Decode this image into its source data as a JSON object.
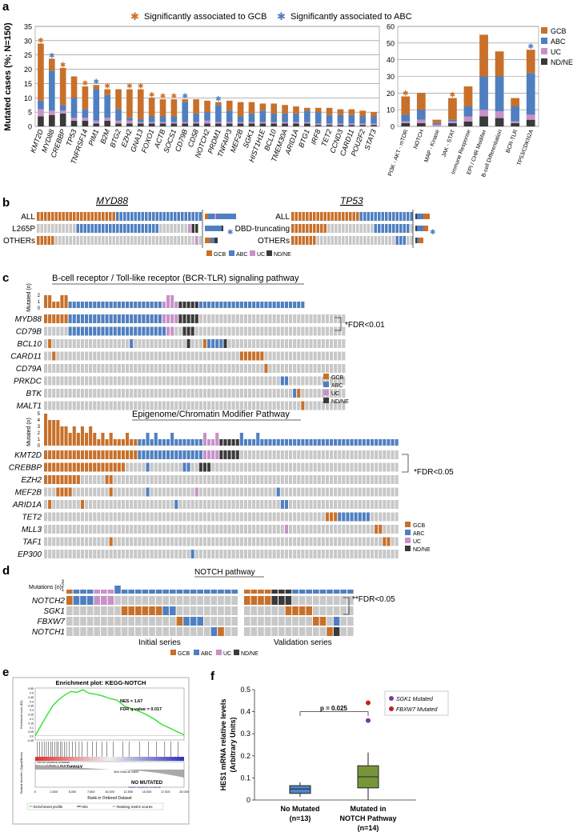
{
  "colors": {
    "gcb": "#c8702a",
    "abc": "#4f7fc0",
    "uc": "#c891c8",
    "ndne": "#3a3a3a",
    "wt": "#c8c8c8",
    "green": "#34e02c",
    "red": "#c02020",
    "purple": "#7a3a9a",
    "boxblue": "#4f86c6",
    "boxgreen": "#77963a"
  },
  "panel_labels": {
    "a": "a",
    "b": "b",
    "c": "c",
    "d": "d",
    "e": "e",
    "f": "f"
  },
  "legend_stars": {
    "gcb": "Significantly associated to GCB",
    "abc": "Significantly associated to ABC"
  },
  "subtype_legend": {
    "gcb": "GCB",
    "abc": "ABC",
    "uc": "UC",
    "ndne": "ND/NE"
  },
  "chart_data": [
    {
      "id": "genes",
      "type": "bar",
      "stacked": true,
      "ylabel": "Mutated cases (%; N=150)",
      "ylim": [
        0,
        35
      ],
      "yticks": [
        0,
        5,
        10,
        15,
        20,
        25,
        30,
        35
      ],
      "categories": [
        "KMT2D",
        "MYD88",
        "CREBBP",
        "TP53",
        "TNFRSF14",
        "PIM1",
        "B2M",
        "BTG2",
        "EZH2",
        "GNA13",
        "FOXO1",
        "ACTB",
        "SOCS1",
        "CD79B",
        "CD58",
        "NOTCH2",
        "PRDM1",
        "TNFAIP3",
        "MEF2B",
        "SGK1",
        "HIST1H1E",
        "BCL10",
        "TMEM30A",
        "ARID1A",
        "BTG1",
        "IRF8",
        "TET2",
        "CCND3",
        "CARD11",
        "POU2F2",
        "STAT3"
      ],
      "series": [
        {
          "name": "ND/NE",
          "values": [
            3.5,
            4,
            4.5,
            2,
            2,
            1,
            2,
            1,
            1,
            1,
            1,
            1,
            1,
            1,
            1,
            1,
            1,
            1,
            1,
            1,
            1,
            1,
            1,
            1,
            1,
            0.5,
            0.5,
            0.5,
            0.5,
            0.5,
            0.5
          ]
        },
        {
          "name": "UC",
          "values": [
            2.5,
            1.5,
            1,
            1,
            1,
            1,
            1,
            1,
            1,
            0.5,
            0.5,
            0.5,
            0.5,
            0.5,
            0.5,
            1,
            0.5,
            0.5,
            0.5,
            0.5,
            0.5,
            0.5,
            0.5,
            0.5,
            0.5,
            0.5,
            0.5,
            0.5,
            0.5,
            0.5,
            0.5
          ]
        },
        {
          "name": "ABC",
          "values": [
            3,
            14,
            2,
            7,
            3,
            11,
            8,
            4,
            1,
            1,
            2,
            2,
            2,
            7,
            3,
            3,
            6,
            4,
            2,
            3,
            4,
            3,
            3,
            3,
            4,
            4,
            3,
            3,
            3,
            2.5,
            2.5
          ]
        },
        {
          "name": "GCB",
          "values": [
            20,
            4.2,
            13,
            7.5,
            8,
            1.5,
            2,
            7,
            10,
            10.5,
            6.5,
            6,
            6,
            1,
            5,
            4,
            1,
            3.5,
            5,
            4,
            2.5,
            3.5,
            3,
            2.5,
            1,
            1.5,
            2.5,
            2,
            2,
            2,
            1.5
          ]
        }
      ],
      "stars": [
        "gcb",
        "abc",
        "gcb",
        "",
        "gcb",
        "abc",
        "gcb",
        "",
        "gcb",
        "gcb",
        "gcb",
        "gcb",
        "gcb",
        "abc",
        "",
        "",
        "abc",
        "",
        "",
        "",
        "",
        "",
        "",
        "",
        "",
        "",
        "",
        "",
        "",
        "",
        ""
      ]
    },
    {
      "id": "pathways",
      "type": "bar",
      "stacked": true,
      "ylim": [
        0,
        60
      ],
      "yticks": [
        0,
        10,
        20,
        30,
        40,
        50,
        60
      ],
      "categories": [
        "PI3K - AKT - mTOR",
        "NOTCH",
        "MAP - Kinase",
        "JAK - STAT",
        "Immune Response",
        "EPI / CHR Modifier",
        "B-cell Differentiation",
        "BCR-TLR",
        "TP53/CDKN2A"
      ],
      "series": [
        {
          "name": "ND/NE",
          "values": [
            2,
            2,
            0,
            2,
            3,
            6,
            5,
            2,
            4
          ]
        },
        {
          "name": "UC",
          "values": [
            1,
            2,
            1,
            1,
            3,
            4,
            4,
            1,
            3
          ]
        },
        {
          "name": "ABC",
          "values": [
            4,
            6,
            1,
            1,
            6,
            20,
            21,
            9,
            25
          ]
        },
        {
          "name": "GCB",
          "values": [
            11,
            10,
            2,
            13,
            12,
            25,
            15,
            5,
            14
          ]
        }
      ],
      "stars": [
        "gcb",
        "",
        "",
        "gcb",
        "",
        "",
        "",
        "",
        "abc"
      ]
    },
    {
      "id": "nes",
      "type": "line",
      "title": "Enrichment plot: KEGG-NOTCH",
      "ylabel": "Enrichment score (ES)",
      "xlabel": "Rank in Ordered Dataset",
      "xlim": [
        0,
        20000
      ],
      "ylim": [
        -0.05,
        0.55
      ],
      "xticks": [
        "0",
        "2,500",
        "5,000",
        "7,500",
        "10,000",
        "12,500",
        "15,000",
        "17,500",
        "20,000"
      ],
      "yticks": [
        "0.55",
        "0.5",
        "0.45",
        "0.4",
        "0.35",
        "0.3",
        "0.25",
        "0.2",
        "0.15",
        "0.1",
        "0.05",
        "0.0",
        "-0.05"
      ],
      "x": [
        0,
        800,
        1600,
        2400,
        3200,
        4000,
        4800,
        5600,
        6400,
        7200,
        8000,
        9000,
        10000,
        11000,
        12000,
        13000,
        14000,
        15000,
        16000,
        17000,
        18000,
        19000,
        20000
      ],
      "y": [
        0,
        0.12,
        0.24,
        0.35,
        0.42,
        0.47,
        0.51,
        0.5,
        0.53,
        0.49,
        0.48,
        0.46,
        0.43,
        0.41,
        0.34,
        0.31,
        0.28,
        0.24,
        0.19,
        0.13,
        0.09,
        0.05,
        0.01
      ],
      "nes_text": "NES = 1.67",
      "fdr_text": "FDR q-value = 0.017",
      "pathway_label": "NOTCH PATHWAY",
      "nomut_label": "NO MUTATED",
      "legend": [
        "Enrichment profile",
        "Hits",
        "Ranking metric scores"
      ],
      "left_label2": "Ranked list metric (Signal2Noise)",
      "pos_note": "'NOTCH' (positively correlated)",
      "neg_note": "'NoMut' (negatively correlated)",
      "zero_note": "Zero cross at 10800"
    },
    {
      "id": "hes1",
      "type": "box",
      "ylabel": "HES1 mRNA relative levels (Arbitrary Units)",
      "ylim": [
        0,
        0.5
      ],
      "yticks": [
        "0",
        "0.1",
        "0.2",
        "0.3",
        "0.4",
        "0.5"
      ],
      "groups": [
        {
          "label": "No Mutated",
          "n": "(n=13)",
          "q1": 0.03,
          "median": 0.05,
          "q3": 0.065,
          "min": 0.015,
          "max": 0.08
        },
        {
          "label": "Mutated in NOTCH Pathway",
          "n": "(n=14)",
          "q1": 0.055,
          "median": 0.105,
          "q3": 0.155,
          "min": 0.0,
          "max": 0.215
        }
      ],
      "outliers": [
        {
          "value": 0.44,
          "label": "FBXW7 Mutated"
        },
        {
          "value": 0.36,
          "label": "SGK1 Mutated"
        }
      ],
      "pvalue": "p = 0.025"
    }
  ],
  "panel_b": {
    "genes": [
      "MYD88",
      "TP53"
    ],
    "myd88_rows": [
      "ALL",
      "L265P",
      "OTHERs"
    ],
    "tp53_rows": [
      "ALL",
      "DBD-truncating",
      "OTHERs"
    ],
    "myd88": {
      "all": "222222222222222222222211111111111111111111111111333344444",
      "l265p": "000000000001111111111111111111111100000000344",
      "others": "222220000000000000000000000000000000000000003000004444"
    },
    "tp53": {
      "all": "222222222222222222211111111111111111111111111134444",
      "trunc": "222222222200000000000001111111111000000000000000044",
      "others": "222222200000000000000000000001110000000000000000000"
    }
  },
  "panel_c": {
    "bcr_title": "B-cell receptor / Toll-like receptor (BCR-TLR) signaling pathway",
    "epi_title": "Epigenome/Chromatin Modifier Pathway",
    "mut_ylabel": "Mutated (n)",
    "fdr1": "*FDR<0.01",
    "fdr2": "*FDR<0.05",
    "bcr_genes": [
      "MYD88",
      "CD79B",
      "BCL10",
      "CARD11",
      "CD79A",
      "PRKDC",
      "BTK",
      "MALT1"
    ],
    "epi_genes": [
      "KMT2D",
      "CREBBP",
      "EZH2",
      "MEF2B",
      "ARID1A",
      "TET2",
      "MLL3",
      "TAF1",
      "EP300"
    ],
    "bcr_rows": [
      "22222211111111111111111111111333344444000000000000000000000000000000000000",
      "00000011111111111111111111111133004440000000000000000000000000000000000000",
      "02000000000000000000010000000000000400021111400000000000000000000000000000",
      "00200000000000000000000000000000000000000000000022222200000000000000000000",
      "00000000000000000000000000000000000000000000000000000020000000000000000000",
      "00000000000000000000000000000000000000000000000000000000001100000000000000",
      "00000000000000000000000000000000000000000000000000000000000001200000000000",
      "00000000000000000000000000000000000000000000000000000000000000020000000000"
    ],
    "bcr_counts": [
      2,
      2,
      1,
      1,
      2,
      2,
      1,
      1,
      1,
      1,
      1,
      1,
      1,
      1,
      1,
      1,
      1,
      1,
      1,
      1,
      1,
      1,
      1,
      1,
      1,
      1,
      1,
      1,
      1,
      1,
      2,
      2,
      1,
      1,
      1,
      1,
      1,
      1,
      1,
      1,
      1,
      1,
      1,
      1,
      1,
      1,
      1,
      1,
      1,
      1,
      1,
      1,
      1,
      1,
      1,
      1,
      1,
      1,
      1,
      1,
      1,
      1,
      1,
      1
    ],
    "epi_rows": [
      "222222222222222222222221111111111111111333344444000000000000000000000000000000000000000",
      "22222222222222222222000001000000001100444000000000000000000000000000000000000000000000000",
      "22222222200000022000000000000000000000000000000000000000000000000000000000000000000000000",
      "00022220000000002000000001000000000003000000000000000000010000000000000000000000000000000",
      "02000000020000000000000000000000100000000000000000000000001100000000000000000000000000000",
      "00000000000000000000000000000000000000000000000000000000000000000000022211111111000000000",
      "00000000000000000000000000000000000000000000000000000000000300000000000000000000022000000",
      "00000000000000002000000000000000000000000000000000000000000000000000000000000000000220000",
      "00000000000000000000000000000000000010000000000000000000000000000000000000000000000000022"
    ],
    "epi_counts": [
      5,
      4,
      4,
      4,
      3,
      3,
      2,
      3,
      2,
      3,
      2,
      3,
      2,
      1,
      2,
      1,
      2,
      1,
      1,
      1,
      2,
      1,
      1,
      1,
      1,
      2,
      1,
      2,
      1,
      1,
      1,
      2,
      1,
      1,
      1,
      1,
      1,
      1,
      1,
      2,
      1,
      1,
      2,
      1,
      1,
      1,
      1,
      1,
      2,
      1,
      1,
      1,
      2,
      1,
      1,
      1,
      1,
      1,
      1,
      1,
      1,
      1,
      1,
      1,
      1,
      1,
      1,
      1,
      1,
      1,
      1,
      1,
      1,
      1,
      1,
      1,
      1,
      1,
      1,
      1,
      1,
      1,
      1,
      1,
      1,
      1,
      1
    ]
  },
  "panel_d": {
    "title": "NOTCH pathway",
    "mut_ylabel": "Mutations (n)",
    "ymax": "3",
    "ymid": "2",
    "ymin": "1",
    "fdr": "**FDR<0.05",
    "series_labels": [
      "Initial series",
      "Validation series"
    ],
    "genes": [
      "NOTCH2",
      "SGK1",
      "FBXW7",
      "NOTCH1"
    ],
    "init_rows": [
      "2111333000000000000000000",
      "0000000022222211000000000",
      "0000000000000000211100000",
      "0000000000000000000001200"
    ],
    "valid_rows": [
      "2222444000000000",
      "0000002222000000",
      "0000000000220100",
      "0000000000002400"
    ]
  }
}
